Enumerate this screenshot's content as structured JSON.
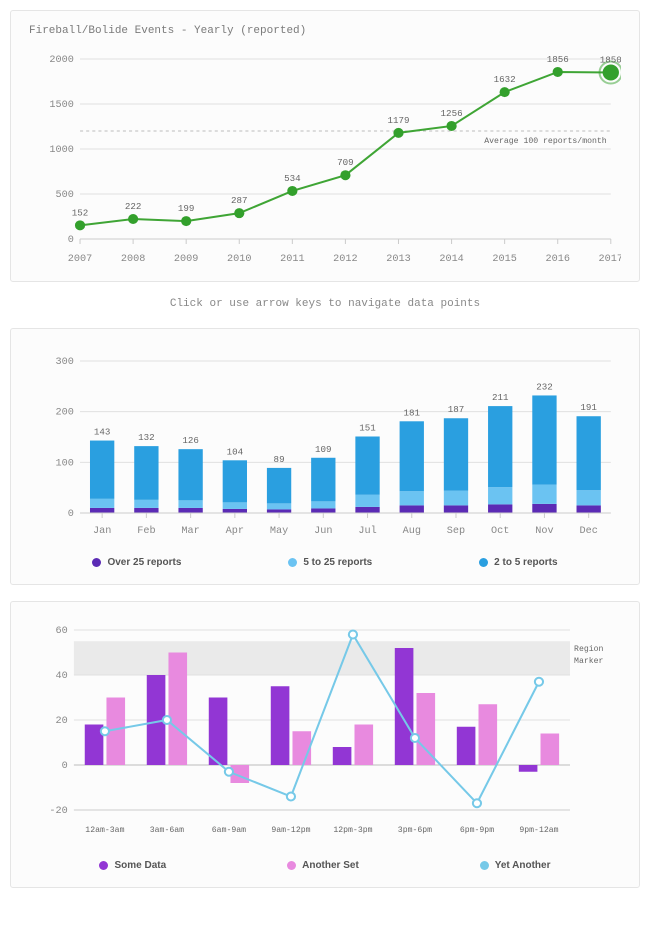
{
  "chart1": {
    "type": "line",
    "title": "Fireball/Bolide Events - Yearly (reported)",
    "title_fontsize": 11,
    "title_color": "#7a7a7a",
    "background_color": "#fcfcfc",
    "border_color": "#e5e5e5",
    "categories": [
      "2007",
      "2008",
      "2009",
      "2010",
      "2011",
      "2012",
      "2013",
      "2014",
      "2015",
      "2016",
      "2017"
    ],
    "values": [
      152,
      222,
      199,
      287,
      534,
      709,
      1179,
      1256,
      1632,
      1856,
      1850
    ],
    "line_color": "#3fa535",
    "line_width": 2,
    "marker_color": "#33a02c",
    "marker_size": 5,
    "marker_highlight_size": 8,
    "ylim": [
      0,
      2000
    ],
    "ytick_step": 500,
    "reference_line": {
      "y": 1200,
      "label": "Average 100 reports/month",
      "color": "#bdbdbd",
      "dash": "3,3"
    },
    "grid_color": "#e0e0e0",
    "axis_color": "#cccccc",
    "axis_font_color": "#888888"
  },
  "nav_hint": "Click or use arrow keys to navigate data points",
  "chart2": {
    "type": "stacked-bar",
    "background_color": "#fcfcfc",
    "border_color": "#e5e5e5",
    "categories": [
      "Jan",
      "Feb",
      "Mar",
      "Apr",
      "May",
      "Jun",
      "Jul",
      "Aug",
      "Sep",
      "Oct",
      "Nov",
      "Dec"
    ],
    "totals": [
      143,
      132,
      126,
      104,
      89,
      109,
      151,
      181,
      187,
      211,
      232,
      191
    ],
    "series": [
      {
        "name": "Over 25 reports",
        "color": "#5b2bb5",
        "values": [
          10,
          10,
          10,
          8,
          7,
          9,
          12,
          15,
          15,
          17,
          18,
          15
        ]
      },
      {
        "name": "5 to 25 reports",
        "color": "#6bc3f2",
        "values": [
          18,
          16,
          15,
          13,
          12,
          14,
          24,
          28,
          29,
          34,
          38,
          30
        ]
      },
      {
        "name": "2 to 5 reports",
        "color": "#2a9fe0",
        "values": [
          115,
          106,
          101,
          83,
          70,
          86,
          115,
          138,
          143,
          160,
          176,
          146
        ]
      }
    ],
    "ylim": [
      0,
      300
    ],
    "ytick_step": 100,
    "bar_width": 0.55,
    "grid_color": "#e0e0e0",
    "axis_color": "#cccccc",
    "axis_font_color": "#888888",
    "legend": [
      {
        "label": "Over 25 reports",
        "color": "#5b2bb5"
      },
      {
        "label": "5 to 25 reports",
        "color": "#6bc3f2"
      },
      {
        "label": "2 to 5 reports",
        "color": "#2a9fe0"
      }
    ]
  },
  "chart3": {
    "type": "grouped-bar-line",
    "background_color": "#fcfcfc",
    "border_color": "#e5e5e5",
    "categories": [
      "12am-3am",
      "3am-6am",
      "6am-9am",
      "9am-12pm",
      "12pm-3pm",
      "3pm-6pm",
      "6pm-9pm",
      "9pm-12am"
    ],
    "bar_series": [
      {
        "name": "Some Data",
        "color": "#9236d4",
        "values": [
          18,
          40,
          30,
          35,
          8,
          52,
          17,
          -3
        ]
      },
      {
        "name": "Another Set",
        "color": "#e88adf",
        "values": [
          30,
          50,
          -8,
          15,
          18,
          32,
          27,
          14
        ]
      }
    ],
    "line_series": {
      "name": "Yet Another",
      "color": "#76c9e8",
      "values": [
        15,
        20,
        -3,
        -14,
        58,
        12,
        -17,
        37
      ],
      "marker_size": 4,
      "line_width": 2
    },
    "ylim": [
      -20,
      60
    ],
    "ytick_step": 20,
    "bar_width": 0.3,
    "bar_gap": 0.05,
    "region_band": {
      "from": 40,
      "to": 55,
      "label": "Region Marker",
      "fill": "#d8d8d8",
      "opacity": 0.5
    },
    "grid_color": "#e0e0e0",
    "axis_color": "#cccccc",
    "axis_font_color": "#888888",
    "legend": [
      {
        "label": "Some Data",
        "color": "#9236d4"
      },
      {
        "label": "Another Set",
        "color": "#e88adf"
      },
      {
        "label": "Yet Another",
        "color": "#76c9e8"
      }
    ]
  }
}
